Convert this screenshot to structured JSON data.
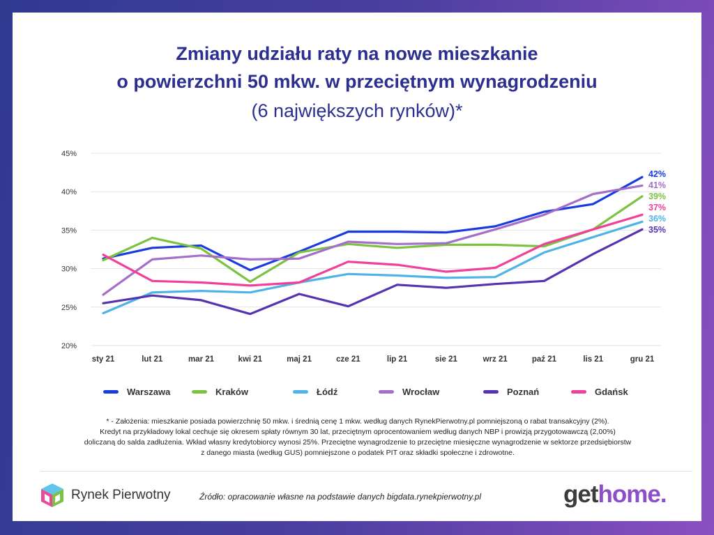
{
  "title_line1": "Zmiany udziału raty na nowe mieszkanie",
  "title_line2": "o powierzchni 50 mkw. w przeciętnym wynagrodzeniu",
  "subtitle": "(6 największych rynków)*",
  "chart_data": {
    "type": "line",
    "categories": [
      "sty 21",
      "lut 21",
      "mar 21",
      "kwi 21",
      "maj 21",
      "cze 21",
      "lip 21",
      "sie 21",
      "wrz 21",
      "paź 21",
      "lis 21",
      "gru 21"
    ],
    "ylim": [
      20,
      45
    ],
    "yticks": [
      20,
      25,
      30,
      35,
      40,
      45
    ],
    "ytick_labels": [
      "20%",
      "25%",
      "30%",
      "35%",
      "40%",
      "45%"
    ],
    "grid": true,
    "legend_position": "bottom",
    "series": [
      {
        "name": "Warszawa",
        "color": "#1a3be0",
        "end_label": "42%",
        "values": [
          31.3,
          32.7,
          33.0,
          29.8,
          32.2,
          34.8,
          34.8,
          34.7,
          35.5,
          37.4,
          38.4,
          41.9
        ]
      },
      {
        "name": "Kraków",
        "color": "#7cc242",
        "end_label": "39%",
        "values": [
          31.1,
          34.0,
          32.6,
          28.3,
          32.1,
          33.2,
          32.7,
          33.1,
          33.1,
          32.9,
          35.1,
          39.4
        ]
      },
      {
        "name": "Łódź",
        "color": "#4fb3e8",
        "end_label": "36%",
        "values": [
          24.2,
          26.9,
          27.1,
          26.9,
          28.2,
          29.3,
          29.1,
          28.8,
          28.9,
          32.1,
          34.1,
          36.1
        ]
      },
      {
        "name": "Wrocław",
        "color": "#a36fc9",
        "end_label": "41%",
        "values": [
          26.6,
          31.2,
          31.7,
          31.2,
          31.3,
          33.5,
          33.2,
          33.3,
          35.1,
          37.0,
          39.7,
          40.8
        ]
      },
      {
        "name": "Poznań",
        "color": "#5533b0",
        "end_label": "35%",
        "values": [
          25.5,
          26.5,
          25.9,
          24.1,
          26.7,
          25.1,
          27.9,
          27.5,
          28.0,
          28.4,
          31.9,
          35.1
        ]
      },
      {
        "name": "Gdańsk",
        "color": "#f0409a",
        "end_label": "37%",
        "values": [
          31.8,
          28.4,
          28.2,
          27.8,
          28.2,
          30.9,
          30.5,
          29.6,
          30.1,
          33.2,
          35.1,
          37.0
        ]
      }
    ]
  },
  "footnote": {
    "line1": "* - Założenia: mieszkanie posiada powierzchnię 50 mkw. i średnią cenę 1 mkw. według danych RynekPierwotny.pl pomniejszoną o rabat transakcyjny (2%).",
    "line2": "Kredyt na przykładowy lokal cechuje się okresem spłaty równym 30 lat, przeciętnym oprocentowaniem według danych NBP i prowizją przygotowawczą (2,00%)",
    "line3": "doliczaną do salda zadłużenia. Wkład własny kredytobiorcy wynosi 25%. Przeciętne wynagrodzenie to przeciętne miesięczne wynagrodzenie w sektorze przedsiębiorstw",
    "line4": "z danego miasta (według GUS) pomniejszone o podatek PIT oraz składki społeczne i zdrowotne."
  },
  "source": "Źródło: opracowanie własne na podstawie danych bigdata.rynekpierwotny.pl",
  "logo_left": "Rynek Pierwotny",
  "logo_right_part1": "get",
  "logo_right_part2": "home."
}
